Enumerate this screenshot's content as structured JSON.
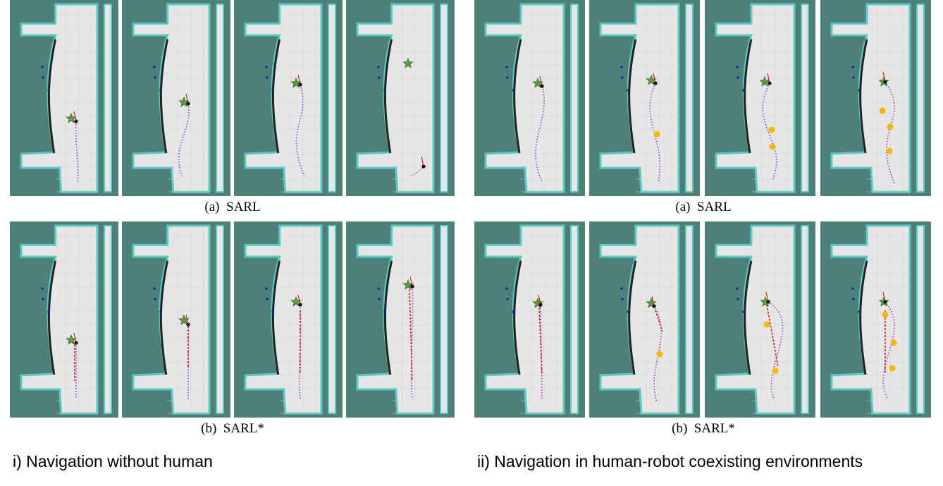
{
  "captions": {
    "left_a": "(a)  SARL",
    "left_b": "(b)  SARL*",
    "right_a": "(a)  SARL",
    "right_b": "(b)  SARL*"
  },
  "sections": {
    "left": "i) Navigation without human",
    "right": "ii) Navigation in human-robot coexisting environments"
  },
  "colors": {
    "background": "#4f8078",
    "map_floor": "#e6e6e6",
    "wall": "#222222",
    "wall_edge": "#59c9c6",
    "path_dotted": "#9b30e0",
    "path_red": "#d61f1f",
    "goal_star": "#5f9a3e",
    "robot": "#111111",
    "human": "#f5b800",
    "obstacle": "#1b24b0"
  },
  "icons": {
    "goal": "star-icon",
    "robot": "robot-dot-icon",
    "human": "human-dot-icon"
  }
}
